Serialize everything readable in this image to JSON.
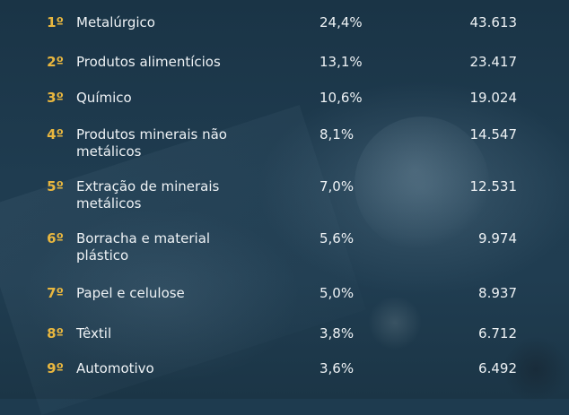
{
  "ranking": [
    {
      "rank": "1º",
      "sector": "Metalúrgico",
      "share": "24,4%",
      "value": "43.613"
    },
    {
      "rank": "2º",
      "sector": "Produtos alimentícios",
      "share": "13,1%",
      "value": "23.417"
    },
    {
      "rank": "3º",
      "sector": "Químico",
      "share": "10,6%",
      "value": "19.024"
    },
    {
      "rank": "4º",
      "sector": "Produtos minerais não metálicos",
      "share": "8,1%",
      "value": "14.547"
    },
    {
      "rank": "5º",
      "sector": "Extração de minerais metálicos",
      "share": "7,0%",
      "value": "12.531"
    },
    {
      "rank": "6º",
      "sector": "Borracha e material plástico",
      "share": "5,6%",
      "value": "9.974"
    },
    {
      "rank": "7º",
      "sector": "Papel e celulose",
      "share": "5,0%",
      "value": "8.937"
    },
    {
      "rank": "8º",
      "sector": "Têxtil",
      "share": "3,8%",
      "value": "6.712"
    },
    {
      "rank": "9º",
      "sector": "Automotivo",
      "share": "3,6%",
      "value": "6.492"
    }
  ],
  "colors": {
    "background": "#1e3b4f",
    "rank": "#e9b73f",
    "text": "#eef2f5"
  }
}
